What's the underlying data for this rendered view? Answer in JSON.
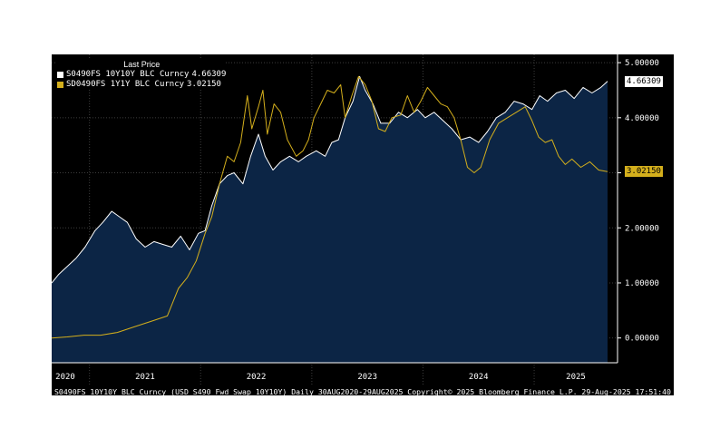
{
  "legend": {
    "title": "Last Price",
    "series1_label": "S0490FS 10Y10Y BLC Curncy",
    "series1_value": "4.66309",
    "series2_label": "SD0490FS 1Y1Y BLC Curncy",
    "series2_value": "3.02150"
  },
  "last_values": {
    "white": "4.66309",
    "yellow": "3.02150"
  },
  "footer": {
    "left": "S0490FS 10Y10Y BLC Curncy (USD S490 Fwd Swap 10Y10Y)  Daily 30AUG2020-29AUG2025",
    "mid": "Copyright© 2025 Bloomberg Finance L.P.",
    "right": "29-Aug-2025 17:51:40"
  },
  "colors": {
    "background": "#000000",
    "area_fill": "#0c2545",
    "white_line": "#ffffff",
    "yellow_line": "#d4af1c",
    "grid": "#3c3c3c"
  },
  "chart_data": {
    "type": "line",
    "title": "",
    "xlabel": "",
    "ylabel": "",
    "x_ticks": [
      "2020",
      "2021",
      "2022",
      "2023",
      "2024",
      "2025"
    ],
    "y_ticks": [
      "0.00000",
      "1.00000",
      "2.00000",
      "3.00000",
      "4.00000",
      "5.00000"
    ],
    "xlim": [
      2020.66,
      2025.75
    ],
    "ylim": [
      -0.45,
      5.15
    ],
    "grid": true,
    "legend_position": "top-left",
    "series": [
      {
        "name": "S0490FS 10Y10Y BLC Curncy",
        "color": "#ffffff",
        "filled": true,
        "points": [
          [
            2020.66,
            1.0
          ],
          [
            2020.72,
            1.15
          ],
          [
            2020.8,
            1.3
          ],
          [
            2020.88,
            1.45
          ],
          [
            2020.96,
            1.65
          ],
          [
            2021.05,
            1.95
          ],
          [
            2021.12,
            2.1
          ],
          [
            2021.2,
            2.3
          ],
          [
            2021.27,
            2.2
          ],
          [
            2021.34,
            2.1
          ],
          [
            2021.42,
            1.8
          ],
          [
            2021.5,
            1.65
          ],
          [
            2021.58,
            1.75
          ],
          [
            2021.66,
            1.7
          ],
          [
            2021.74,
            1.65
          ],
          [
            2021.82,
            1.85
          ],
          [
            2021.9,
            1.6
          ],
          [
            2021.98,
            1.9
          ],
          [
            2022.04,
            1.95
          ],
          [
            2022.1,
            2.4
          ],
          [
            2022.17,
            2.8
          ],
          [
            2022.24,
            2.95
          ],
          [
            2022.3,
            3.0
          ],
          [
            2022.38,
            2.8
          ],
          [
            2022.45,
            3.3
          ],
          [
            2022.52,
            3.7
          ],
          [
            2022.58,
            3.3
          ],
          [
            2022.65,
            3.05
          ],
          [
            2022.72,
            3.2
          ],
          [
            2022.8,
            3.3
          ],
          [
            2022.88,
            3.2
          ],
          [
            2022.95,
            3.3
          ],
          [
            2023.04,
            3.4
          ],
          [
            2023.12,
            3.3
          ],
          [
            2023.18,
            3.55
          ],
          [
            2023.24,
            3.6
          ],
          [
            2023.3,
            4.0
          ],
          [
            2023.37,
            4.3
          ],
          [
            2023.43,
            4.75
          ],
          [
            2023.48,
            4.5
          ],
          [
            2023.55,
            4.25
          ],
          [
            2023.62,
            3.9
          ],
          [
            2023.7,
            3.9
          ],
          [
            2023.78,
            4.1
          ],
          [
            2023.86,
            4.0
          ],
          [
            2023.95,
            4.15
          ],
          [
            2024.02,
            4.0
          ],
          [
            2024.1,
            4.1
          ],
          [
            2024.18,
            3.95
          ],
          [
            2024.26,
            3.8
          ],
          [
            2024.34,
            3.6
          ],
          [
            2024.42,
            3.65
          ],
          [
            2024.5,
            3.55
          ],
          [
            2024.58,
            3.75
          ],
          [
            2024.66,
            4.0
          ],
          [
            2024.74,
            4.1
          ],
          [
            2024.82,
            4.3
          ],
          [
            2024.9,
            4.25
          ],
          [
            2024.98,
            4.15
          ],
          [
            2025.05,
            4.4
          ],
          [
            2025.12,
            4.3
          ],
          [
            2025.2,
            4.45
          ],
          [
            2025.28,
            4.5
          ],
          [
            2025.36,
            4.35
          ],
          [
            2025.44,
            4.55
          ],
          [
            2025.52,
            4.45
          ],
          [
            2025.6,
            4.55
          ],
          [
            2025.66,
            4.66309
          ]
        ]
      },
      {
        "name": "SD0490FS 1Y1Y BLC Curncy",
        "color": "#d4af1c",
        "filled": false,
        "points": [
          [
            2020.66,
            0.0
          ],
          [
            2020.8,
            0.02
          ],
          [
            2020.95,
            0.05
          ],
          [
            2021.1,
            0.05
          ],
          [
            2021.25,
            0.1
          ],
          [
            2021.4,
            0.2
          ],
          [
            2021.55,
            0.3
          ],
          [
            2021.7,
            0.4
          ],
          [
            2021.8,
            0.9
          ],
          [
            2021.88,
            1.1
          ],
          [
            2021.96,
            1.4
          ],
          [
            2022.04,
            1.9
          ],
          [
            2022.1,
            2.2
          ],
          [
            2022.17,
            2.8
          ],
          [
            2022.24,
            3.3
          ],
          [
            2022.3,
            3.2
          ],
          [
            2022.36,
            3.55
          ],
          [
            2022.42,
            4.4
          ],
          [
            2022.46,
            3.8
          ],
          [
            2022.52,
            4.2
          ],
          [
            2022.56,
            4.5
          ],
          [
            2022.6,
            3.7
          ],
          [
            2022.66,
            4.25
          ],
          [
            2022.72,
            4.1
          ],
          [
            2022.78,
            3.6
          ],
          [
            2022.86,
            3.3
          ],
          [
            2022.92,
            3.4
          ],
          [
            2022.97,
            3.6
          ],
          [
            2023.02,
            4.0
          ],
          [
            2023.08,
            4.25
          ],
          [
            2023.14,
            4.5
          ],
          [
            2023.2,
            4.45
          ],
          [
            2023.26,
            4.6
          ],
          [
            2023.3,
            4.0
          ],
          [
            2023.36,
            4.4
          ],
          [
            2023.42,
            4.75
          ],
          [
            2023.48,
            4.6
          ],
          [
            2023.54,
            4.3
          ],
          [
            2023.6,
            3.8
          ],
          [
            2023.66,
            3.75
          ],
          [
            2023.72,
            4.0
          ],
          [
            2023.8,
            4.05
          ],
          [
            2023.86,
            4.4
          ],
          [
            2023.92,
            4.1
          ],
          [
            2023.98,
            4.3
          ],
          [
            2024.04,
            4.55
          ],
          [
            2024.1,
            4.4
          ],
          [
            2024.16,
            4.25
          ],
          [
            2024.22,
            4.2
          ],
          [
            2024.28,
            4.0
          ],
          [
            2024.34,
            3.6
          ],
          [
            2024.4,
            3.1
          ],
          [
            2024.46,
            3.0
          ],
          [
            2024.52,
            3.1
          ],
          [
            2024.6,
            3.6
          ],
          [
            2024.68,
            3.9
          ],
          [
            2024.76,
            4.0
          ],
          [
            2024.84,
            4.1
          ],
          [
            2024.92,
            4.2
          ],
          [
            2024.98,
            3.95
          ],
          [
            2025.04,
            3.65
          ],
          [
            2025.1,
            3.55
          ],
          [
            2025.16,
            3.6
          ],
          [
            2025.22,
            3.3
          ],
          [
            2025.28,
            3.15
          ],
          [
            2025.34,
            3.25
          ],
          [
            2025.42,
            3.1
          ],
          [
            2025.5,
            3.2
          ],
          [
            2025.58,
            3.05
          ],
          [
            2025.66,
            3.0215
          ]
        ]
      }
    ]
  }
}
